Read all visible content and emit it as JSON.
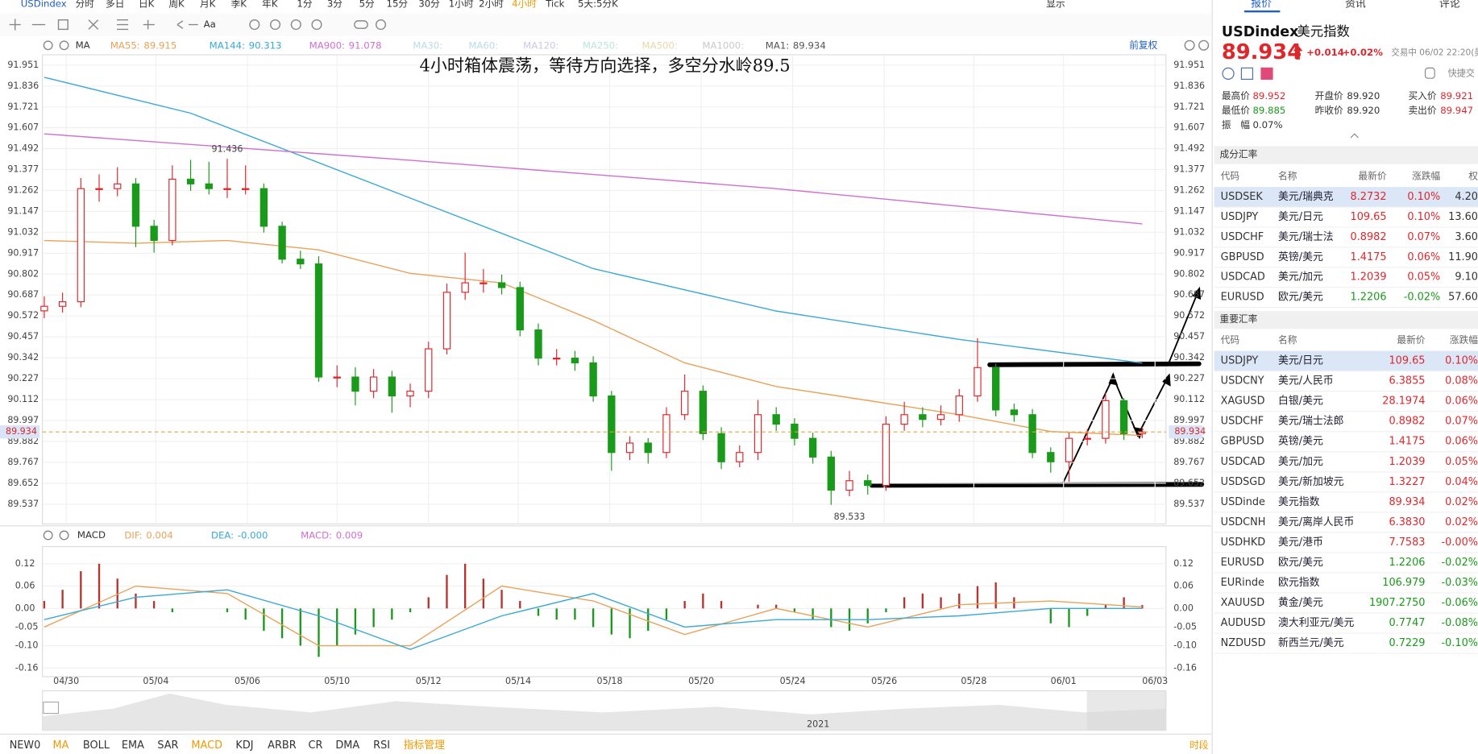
{
  "toolbar": {
    "symbol": "USDindex",
    "periods": [
      {
        "label": "分时"
      },
      {
        "label": "多日"
      },
      {
        "label": "日K"
      },
      {
        "label": "周K"
      },
      {
        "label": "月K"
      },
      {
        "label": "季K"
      },
      {
        "label": "年K"
      },
      {
        "label": "1分"
      },
      {
        "label": "3分"
      },
      {
        "label": "5分"
      },
      {
        "label": "15分"
      },
      {
        "label": "30分"
      },
      {
        "label": "1小时"
      },
      {
        "label": "2小时"
      },
      {
        "label": "4小时",
        "color": "#f39800"
      },
      {
        "label": "Tick"
      },
      {
        "label": "5天:5分K"
      }
    ],
    "display": "显示",
    "font_tool": "Aa",
    "adjust": "前复权"
  },
  "chart_data": [
    {
      "type": "candlestick",
      "title": "4小时箱体震荡，等待方向选择，多空分水岭89.5",
      "indicator": "MA",
      "ohlc": [
        [
          90.6,
          90.68,
          90.56,
          90.625
        ],
        [
          90.625,
          90.7,
          90.59,
          90.65
        ],
        [
          90.65,
          91.33,
          90.62,
          91.272
        ],
        [
          91.272,
          91.35,
          91.2,
          91.272
        ],
        [
          91.272,
          91.39,
          91.23,
          91.298
        ],
        [
          91.298,
          91.33,
          90.95,
          91.065
        ],
        [
          91.065,
          91.1,
          90.92,
          90.987
        ],
        [
          90.987,
          91.4,
          90.96,
          91.324
        ],
        [
          91.324,
          91.43,
          91.26,
          91.298
        ],
        [
          91.298,
          91.42,
          91.24,
          91.272
        ],
        [
          91.272,
          91.436,
          91.22,
          91.272
        ],
        [
          91.272,
          91.4,
          91.24,
          91.272
        ],
        [
          91.272,
          91.3,
          91.03,
          91.065
        ],
        [
          91.065,
          91.09,
          90.86,
          90.884
        ],
        [
          90.884,
          90.93,
          90.83,
          90.858
        ],
        [
          90.858,
          90.9,
          90.21,
          90.236
        ],
        [
          90.236,
          90.3,
          90.18,
          90.236
        ],
        [
          90.236,
          90.29,
          90.08,
          90.158
        ],
        [
          90.158,
          90.28,
          90.12,
          90.236
        ],
        [
          90.236,
          90.27,
          90.04,
          90.132
        ],
        [
          90.132,
          90.2,
          90.07,
          90.158
        ],
        [
          90.158,
          90.43,
          90.12,
          90.391
        ],
        [
          90.391,
          90.75,
          90.36,
          90.702
        ],
        [
          90.702,
          90.92,
          90.66,
          90.754
        ],
        [
          90.754,
          90.83,
          90.7,
          90.754
        ],
        [
          90.754,
          90.8,
          90.69,
          90.728
        ],
        [
          90.728,
          90.76,
          90.46,
          90.495
        ],
        [
          90.495,
          90.53,
          90.3,
          90.34
        ],
        [
          90.34,
          90.39,
          90.3,
          90.34
        ],
        [
          90.34,
          90.38,
          90.27,
          90.314
        ],
        [
          90.314,
          90.35,
          90.1,
          90.132
        ],
        [
          90.132,
          90.16,
          89.72,
          89.821
        ],
        [
          89.821,
          89.91,
          89.78,
          89.873
        ],
        [
          89.873,
          89.9,
          89.76,
          89.821
        ],
        [
          89.821,
          90.07,
          89.79,
          90.029
        ],
        [
          90.029,
          90.25,
          90.0,
          90.158
        ],
        [
          90.158,
          90.19,
          89.89,
          89.925
        ],
        [
          89.925,
          89.96,
          89.73,
          89.77
        ],
        [
          89.77,
          89.86,
          89.74,
          89.821
        ],
        [
          89.821,
          90.11,
          89.78,
          90.029
        ],
        [
          90.029,
          90.07,
          89.94,
          89.977
        ],
        [
          89.977,
          90.01,
          89.86,
          89.899
        ],
        [
          89.899,
          89.93,
          89.76,
          89.796
        ],
        [
          89.796,
          89.83,
          89.533,
          89.614
        ],
        [
          89.614,
          89.72,
          89.58,
          89.666
        ],
        [
          89.666,
          89.7,
          89.59,
          89.64
        ],
        [
          89.64,
          90.02,
          89.61,
          89.977
        ],
        [
          89.977,
          90.1,
          89.94,
          90.029
        ],
        [
          90.029,
          90.07,
          89.96,
          90.003
        ],
        [
          90.003,
          90.08,
          89.97,
          90.029
        ],
        [
          90.029,
          90.17,
          89.99,
          90.132
        ],
        [
          90.132,
          90.45,
          90.1,
          90.288
        ],
        [
          90.288,
          90.31,
          90.02,
          90.055
        ],
        [
          90.055,
          90.09,
          89.99,
          90.029
        ],
        [
          90.029,
          90.06,
          89.79,
          89.821
        ],
        [
          89.821,
          89.85,
          89.71,
          89.77
        ],
        [
          89.77,
          89.93,
          89.66,
          89.899
        ],
        [
          89.899,
          89.95,
          89.86,
          89.899
        ],
        [
          89.899,
          90.15,
          89.87,
          90.106
        ],
        [
          90.106,
          90.12,
          89.89,
          89.925
        ],
        [
          89.925,
          89.96,
          89.9,
          89.934
        ]
      ],
      "up_color": "#e0262b",
      "down_color": "#1a9a1a",
      "xlim": [
        -0.1,
        61.3
      ],
      "xticks": [
        {
          "value": 1.2,
          "label": "04/30"
        },
        {
          "value": 6.1,
          "label": "05/04"
        },
        {
          "value": 11.1,
          "label": "05/06"
        },
        {
          "value": 16.0,
          "label": "05/10"
        },
        {
          "value": 21.0,
          "label": "05/12"
        },
        {
          "value": 25.9,
          "label": "05/14"
        },
        {
          "value": 30.9,
          "label": "05/18"
        },
        {
          "value": 35.9,
          "label": "05/20"
        },
        {
          "value": 40.9,
          "label": "05/24"
        },
        {
          "value": 45.9,
          "label": "05/26"
        },
        {
          "value": 50.8,
          "label": "05/28"
        },
        {
          "value": 55.7,
          "label": "06/01"
        },
        {
          "value": 60.7,
          "label": "06/03"
        }
      ],
      "ylim": [
        89.428,
        92.008
      ],
      "yticks": [
        91.951,
        91.836,
        91.721,
        91.607,
        91.492,
        91.377,
        91.262,
        91.147,
        91.032,
        90.917,
        90.802,
        90.687,
        90.572,
        90.457,
        90.342,
        90.227,
        90.112,
        89.997,
        89.882,
        89.767,
        89.652,
        89.537
      ],
      "grid": true,
      "last_price": 89.934,
      "last_price_color": "#e8a03a",
      "extremes": [
        {
          "x": 10,
          "value": 91.436
        },
        {
          "x": 44,
          "value": 89.533
        }
      ],
      "series": [
        {
          "name": "MA55:",
          "value": 89.915,
          "color": "#e8a25a",
          "x": [
            0,
            5,
            10,
            15,
            20,
            25,
            30,
            35,
            40,
            45,
            50,
            55,
            60
          ],
          "values": [
            90.987,
            90.972,
            90.987,
            90.935,
            90.806,
            90.754,
            90.547,
            90.314,
            90.184,
            90.107,
            90.029,
            89.936,
            89.915
          ]
        },
        {
          "name": "MA144:",
          "value": 90.313,
          "color": "#39a9d6",
          "x": [
            0,
            8,
            20,
            30,
            40,
            50,
            60
          ],
          "values": [
            91.884,
            91.687,
            91.22,
            90.832,
            90.599,
            90.443,
            90.313
          ]
        },
        {
          "name": "MA900:",
          "value": 91.078,
          "color": "#cf6fd0",
          "x": [
            0,
            20,
            40,
            60
          ],
          "values": [
            91.573,
            91.428,
            91.272,
            91.078
          ]
        }
      ],
      "legend_only": [
        {
          "name": "MA30:",
          "color": "#b9dbe6"
        },
        {
          "name": "MA60:",
          "color": "#b9dbe6"
        },
        {
          "name": "MA120:",
          "color": "#c9c9e6"
        },
        {
          "name": "MA250:",
          "color": "#b9e6d6"
        },
        {
          "name": "MA500:",
          "color": "#e6d9a9"
        },
        {
          "name": "MA1000:",
          "color": "#c9c9c9"
        },
        {
          "name": "MA1:",
          "value": 89.934,
          "color": "#555555"
        }
      ]
    },
    {
      "type": "macd",
      "title": "MACD",
      "xlim": [
        -0.1,
        61.3
      ],
      "ylim": [
        -0.183,
        0.166
      ],
      "yticks": [
        0.12,
        0.06,
        {
          "value": 0,
          "label": "0.00"
        },
        -0.05,
        {
          "value": -0.1,
          "label": "-0.10"
        },
        -0.16
      ],
      "series": [
        {
          "name": "DIF:",
          "value": 0.004,
          "color": "#e8a25a",
          "x": [
            0,
            5,
            10,
            15,
            20,
            25,
            30,
            35,
            40,
            45,
            50,
            55,
            60
          ],
          "values": [
            -0.05,
            0.06,
            0.04,
            -0.1,
            -0.1,
            0.06,
            0.02,
            -0.07,
            0,
            -0.05,
            0.01,
            0.02,
            0.004
          ]
        },
        {
          "name": "DEA:",
          "value": "-0.000",
          "color": "#39a9d6",
          "x": [
            0,
            5,
            10,
            15,
            20,
            25,
            30,
            35,
            40,
            45,
            50,
            55,
            60
          ],
          "values": [
            -0.03,
            0.03,
            0.05,
            -0.02,
            -0.11,
            -0.02,
            0.04,
            -0.05,
            -0.03,
            -0.03,
            -0.02,
            0,
            0
          ]
        }
      ],
      "histogram": {
        "name": "MACD:",
        "value": 0.009,
        "color": "#cf6fd0",
        "up_color": "#b8322f",
        "down_color": "#1a9a1a",
        "values": [
          0.02,
          0.05,
          0.1,
          0.12,
          0.08,
          0.04,
          0.02,
          -0.01,
          0,
          0,
          -0.01,
          -0.03,
          -0.06,
          -0.08,
          -0.1,
          -0.13,
          -0.1,
          -0.07,
          -0.05,
          -0.03,
          -0.01,
          0.03,
          0.09,
          0.12,
          0.08,
          0.05,
          0.02,
          -0.02,
          -0.03,
          -0.03,
          -0.05,
          -0.07,
          -0.08,
          -0.06,
          -0.03,
          0.02,
          0.04,
          0.02,
          0,
          0.01,
          0.01,
          -0.01,
          -0.03,
          -0.05,
          -0.06,
          -0.04,
          -0.01,
          0.03,
          0.04,
          0.03,
          0.04,
          0.06,
          0.07,
          0.03,
          0,
          -0.04,
          -0.05,
          -0.02,
          0.01,
          0.03,
          0.009
        ]
      }
    }
  ],
  "indicator_tabs": [
    {
      "label": "NEW0"
    },
    {
      "label": "MA",
      "color": "#f39800"
    },
    {
      "label": "BOLL"
    },
    {
      "label": "EMA"
    },
    {
      "label": "SAR"
    },
    {
      "label": "MACD",
      "color": "#f39800"
    },
    {
      "label": "KDJ"
    },
    {
      "label": "ARBR"
    },
    {
      "label": "CR"
    },
    {
      "label": "DMA"
    },
    {
      "label": "RSI"
    },
    {
      "label": "指标管理",
      "color": "#f39800"
    }
  ],
  "navigator": {
    "year": "2021",
    "period_button": "时段"
  },
  "side_panel": {
    "tabs": [
      "报价",
      "资讯",
      "评论"
    ],
    "symbol": "USDindex",
    "name": "美元指数",
    "price": "89.934",
    "change": "+0.014",
    "change_pct": "+0.02%",
    "status": "交易中 06/02 22:20(美",
    "quick_trade": "快捷交",
    "stats": [
      {
        "label": "最高价",
        "value": "89.952",
        "color": "#e0262b"
      },
      {
        "label": "开盘价",
        "value": "89.920",
        "color": "#333333"
      },
      {
        "label": "买入价",
        "value": "89.921",
        "color": "#e0262b"
      },
      {
        "label": "最低价",
        "value": "89.885",
        "color": "#1a9a1a"
      },
      {
        "label": "昨收价",
        "value": "89.920",
        "color": "#333333"
      },
      {
        "label": "卖出价",
        "value": "89.947",
        "color": "#e0262b"
      },
      {
        "label": "振　幅",
        "value": "0.07%",
        "color": "#333333"
      }
    ],
    "components": {
      "title": "成分汇率",
      "selected": 0,
      "columns": [
        "代码",
        "名称",
        "最新价",
        "涨跌幅",
        "权"
      ],
      "rows": [
        [
          "USDSEK",
          "美元/瑞典克",
          "8.2732",
          "0.10%",
          "4.20"
        ],
        [
          "USDJPY",
          "美元/日元",
          "109.65",
          "0.10%",
          "13.60"
        ],
        [
          "USDCHF",
          "美元/瑞士法",
          "0.8982",
          "0.07%",
          "3.60"
        ],
        [
          "GBPUSD",
          "英镑/美元",
          "1.4175",
          "0.06%",
          "11.90"
        ],
        [
          "USDCAD",
          "美元/加元",
          "1.2039",
          "0.05%",
          "9.10"
        ],
        [
          "EURUSD",
          "欧元/美元",
          "1.2206",
          "-0.02%",
          "57.60"
        ]
      ]
    },
    "majors": {
      "title": "重要汇率",
      "selected": 0,
      "columns": [
        "代码",
        "名称",
        "最新价",
        "涨跌幅"
      ],
      "rows": [
        [
          "USDJPY",
          "美元/日元",
          "109.65",
          "0.10%"
        ],
        [
          "USDCNY",
          "美元/人民币",
          "6.3855",
          "0.08%"
        ],
        [
          "XAGUSD",
          "白银/美元",
          "28.1974",
          "0.06%"
        ],
        [
          "USDCHF",
          "美元/瑞士法郎",
          "0.8982",
          "0.07%"
        ],
        [
          "GBPUSD",
          "英镑/美元",
          "1.4175",
          "0.06%"
        ],
        [
          "USDCAD",
          "美元/加元",
          "1.2039",
          "0.05%"
        ],
        [
          "USDSGD",
          "美元/新加坡元",
          "1.3227",
          "0.04%"
        ],
        [
          "USDinde",
          "美元指数",
          "89.934",
          "0.02%"
        ],
        [
          "USDCNH",
          "美元/离岸人民币",
          "6.3830",
          "0.02%"
        ],
        [
          "USDHKD",
          "美元/港币",
          "7.7583",
          "-0.00%"
        ],
        [
          "EURUSD",
          "欧元/美元",
          "1.2206",
          "-0.02%"
        ],
        [
          "EURinde",
          "欧元指数",
          "106.979",
          "-0.03%"
        ],
        [
          "XAUUSD",
          "黄金/美元",
          "1907.2750",
          "-0.06%"
        ],
        [
          "AUDUSD",
          "澳大利亚元/美元",
          "0.7747",
          "-0.08%"
        ],
        [
          "NZDUSD",
          "新西兰元/美元",
          "0.7229",
          "-0.10%"
        ]
      ]
    }
  }
}
